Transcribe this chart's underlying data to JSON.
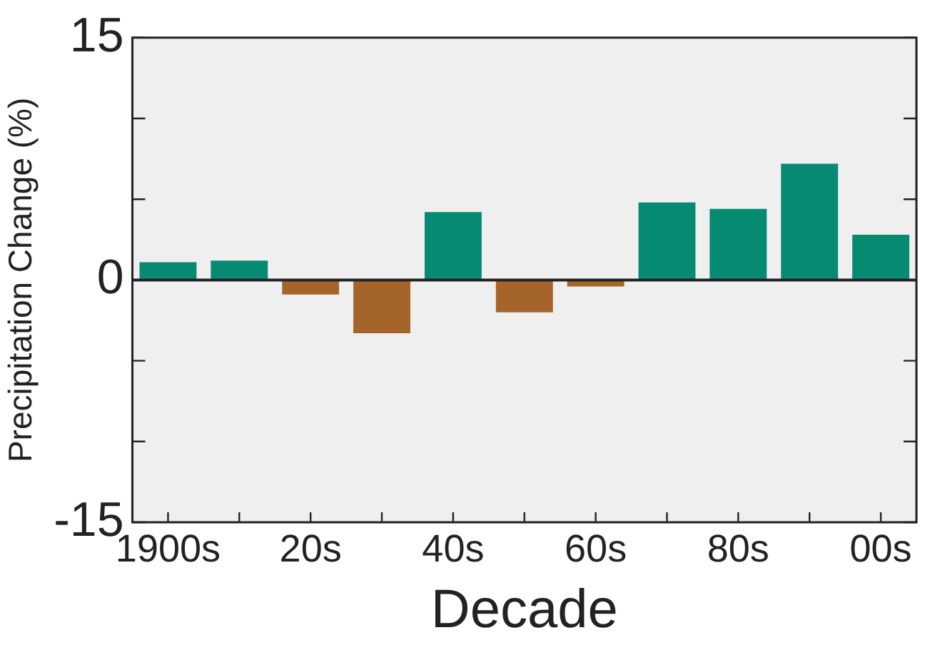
{
  "chart_data": {
    "type": "bar",
    "xlabel": "Decade",
    "ylabel": "Precipitation Change (%)",
    "categories": [
      "1900s",
      null,
      "20s",
      null,
      "40s",
      null,
      "60s",
      null,
      "80s",
      null,
      "00s"
    ],
    "values": [
      1.1,
      1.2,
      -0.9,
      -3.3,
      4.2,
      -2.0,
      -0.4,
      4.8,
      4.4,
      7.2,
      2.8
    ],
    "colors": [
      "#078a72",
      "#078a72",
      "#a5652a",
      "#a5652a",
      "#078a72",
      "#a5652a",
      "#a5652a",
      "#078a72",
      "#078a72",
      "#078a72",
      "#078a72"
    ],
    "ylim": [
      -15,
      15
    ],
    "yticks": [
      -15,
      {
        "value": -10,
        "label": null
      },
      {
        "value": -5,
        "label": null
      },
      0,
      {
        "value": 5,
        "label": null
      },
      {
        "value": 10,
        "label": null
      },
      15
    ],
    "ref_lines": [
      {
        "axis": "y",
        "value": 0,
        "color": "#222222"
      }
    ],
    "grid": false,
    "legend": false
  }
}
